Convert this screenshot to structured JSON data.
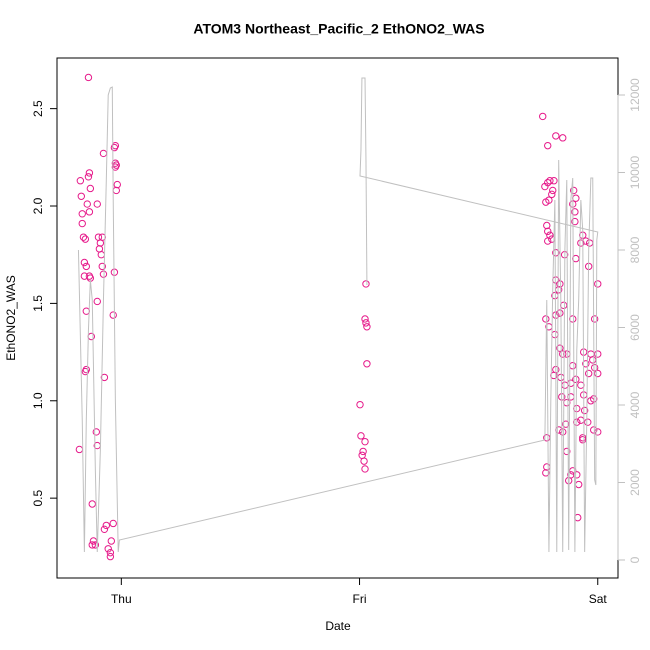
{
  "chart_data": {
    "type": "scatter",
    "title": "ATOM3 Northeast_Pacific_2 EthONO2_WAS",
    "xlabel": "Date",
    "ylabel": "EthONO2_WAS",
    "xlim": [
      -0.27,
      2.085
    ],
    "xticks": [
      {
        "value": 0,
        "label": "Thu"
      },
      {
        "value": 1,
        "label": "Fri"
      },
      {
        "value": 2,
        "label": "Sat"
      }
    ],
    "ylim": [
      0.09,
      2.76
    ],
    "yticks": [
      0.5,
      {
        "value": 1,
        "label": "1.0"
      },
      1.5,
      {
        "value": 2,
        "label": "2.0"
      },
      2.5
    ],
    "y2lim": [
      -465,
      12955
    ],
    "y2ticks": [
      0,
      2000,
      4000,
      6000,
      8000,
      10000,
      12000
    ],
    "y2color": "#c0c0c0",
    "series": [
      {
        "type": "scatter",
        "color": "#e6198a",
        "x": [
          -0.176,
          -0.138,
          -0.172,
          -0.168,
          -0.164,
          -0.164,
          -0.159,
          -0.155,
          -0.155,
          -0.151,
          -0.147,
          -0.143,
          -0.138,
          -0.134,
          -0.134,
          -0.13,
          -0.134,
          -0.13,
          -0.147,
          -0.147,
          -0.151,
          -0.126,
          -0.122,
          -0.117,
          -0.109,
          -0.122,
          -0.105,
          -0.101,
          -0.101,
          -0.101,
          -0.096,
          -0.092,
          -0.088,
          -0.084,
          -0.08,
          -0.08,
          -0.075,
          -0.075,
          -0.071,
          -0.071,
          -0.063,
          -0.055,
          -0.046,
          -0.046,
          -0.034,
          -0.042,
          -0.034,
          -0.029,
          -0.029,
          -0.025,
          -0.025,
          -0.025,
          -0.021,
          -0.021,
          -0.017,
          1.002,
          1.006,
          1.011,
          1.015,
          1.019,
          1.023,
          1.023,
          1.023,
          1.027,
          1.031,
          1.031,
          1.027,
          1.769,
          1.79,
          1.824,
          1.853,
          1.778,
          1.79,
          1.799,
          1.816,
          1.811,
          1.782,
          1.795,
          1.807,
          1.899,
          1.908,
          1.895,
          1.786,
          1.79,
          1.799,
          1.807,
          1.79,
          1.904,
          1.904,
          1.937,
          1.95,
          1.966,
          1.929,
          1.824,
          1.861,
          1.908,
          1.962,
          1.824,
          1.841,
          1.82,
          1.836,
          1.857,
          1.824,
          1.841,
          1.782,
          1.895,
          1.987,
          2.0,
          1.795,
          1.82,
          1.841,
          1.853,
          1.87,
          1.941,
          1.971,
          2.0,
          1.979,
          1.824,
          1.895,
          1.95,
          1.987,
          2.0,
          1.962,
          1.845,
          1.862,
          1.887,
          1.908,
          1.929,
          1.816,
          1.887,
          1.849,
          1.87,
          1.941,
          1.971,
          1.983,
          1.912,
          1.945,
          1.929,
          1.912,
          1.866,
          1.837,
          1.853,
          1.983,
          2.0,
          1.958,
          1.786,
          1.937,
          1.937,
          1.87,
          1.786,
          1.782,
          1.895,
          1.887,
          1.912,
          1.878,
          1.92,
          1.916
        ],
        "values": [
          0.75,
          2.66,
          2.13,
          2.05,
          1.96,
          1.91,
          1.84,
          1.71,
          1.64,
          1.83,
          1.69,
          2.01,
          2.15,
          2.17,
          1.97,
          2.09,
          1.64,
          1.63,
          1.46,
          1.16,
          1.15,
          1.33,
          0.47,
          0.28,
          0.26,
          0.26,
          0.84,
          0.77,
          2.01,
          1.51,
          1.84,
          1.78,
          1.81,
          1.75,
          1.84,
          1.69,
          2.27,
          1.65,
          1.12,
          0.34,
          0.36,
          0.24,
          0.22,
          0.2,
          0.37,
          0.28,
          1.44,
          1.66,
          2.3,
          2.31,
          2.22,
          2.2,
          2.21,
          2.08,
          2.11,
          0.98,
          0.82,
          0.72,
          0.74,
          0.69,
          0.65,
          0.79,
          1.42,
          1.4,
          1.38,
          1.19,
          1.6,
          2.46,
          2.31,
          2.36,
          2.35,
          2.1,
          2.12,
          2.13,
          2.13,
          2.08,
          2.02,
          2.03,
          2.06,
          2.08,
          2.04,
          2.01,
          1.9,
          1.87,
          1.85,
          1.83,
          1.82,
          1.97,
          1.92,
          1.85,
          1.82,
          1.81,
          1.81,
          1.76,
          1.75,
          1.73,
          1.69,
          1.62,
          1.6,
          1.54,
          1.57,
          1.49,
          1.44,
          1.45,
          1.42,
          1.42,
          1.42,
          1.6,
          1.38,
          1.34,
          1.27,
          1.24,
          1.24,
          1.25,
          1.24,
          1.24,
          1.21,
          1.16,
          1.18,
          1.19,
          1.17,
          1.14,
          1.14,
          1.12,
          1.08,
          1.09,
          1.11,
          1.08,
          1.13,
          1.02,
          1.02,
          0.99,
          1.03,
          1.0,
          1.01,
          0.96,
          0.95,
          0.9,
          0.89,
          0.88,
          0.85,
          0.84,
          0.85,
          0.84,
          0.89,
          0.81,
          0.81,
          0.8,
          0.74,
          0.66,
          0.63,
          0.64,
          0.62,
          0.62,
          0.59,
          0.57,
          0.4
        ]
      },
      {
        "type": "line",
        "axis": "y2",
        "color": "#c0c0c0",
        "x": [
          -0.18,
          -0.164,
          -0.155,
          -0.147,
          -0.138,
          -0.13,
          -0.122,
          -0.109,
          -0.101,
          -0.088,
          -0.075,
          -0.063,
          -0.055,
          -0.046,
          -0.038,
          -0.034,
          -0.025,
          -0.013,
          -0.008,
          1.778,
          1.786,
          1.795,
          1.803,
          1.811,
          1.82,
          1.828,
          1.836,
          1.845,
          1.853,
          1.862,
          1.87,
          1.878,
          1.887,
          1.895,
          1.904,
          1.912,
          1.92,
          1.929,
          1.937,
          1.945,
          1.954,
          1.962,
          1.971,
          1.979,
          1.987,
          1.992,
          1.996,
          2.0,
          1.002,
          1.006,
          1.01,
          1.023,
          1.027,
          1.031
        ],
        "values": [
          8000,
          3613,
          206,
          3613,
          5935,
          7226,
          6710,
          2323,
          206,
          2839,
          6710,
          9806,
          12000,
          12180,
          12206,
          9290,
          4129,
          206,
          516,
          3097,
          6710,
          206,
          4129,
          6968,
          9290,
          206,
          10323,
          6710,
          206,
          8000,
          9806,
          258,
          9290,
          9858,
          206,
          5419,
          6710,
          9290,
          8516,
          206,
          3613,
          8000,
          9858,
          9858,
          2065,
          1935,
          8258,
          8464,
          9910,
          10581,
          12439,
          12439,
          10323,
          7097
        ]
      }
    ]
  }
}
